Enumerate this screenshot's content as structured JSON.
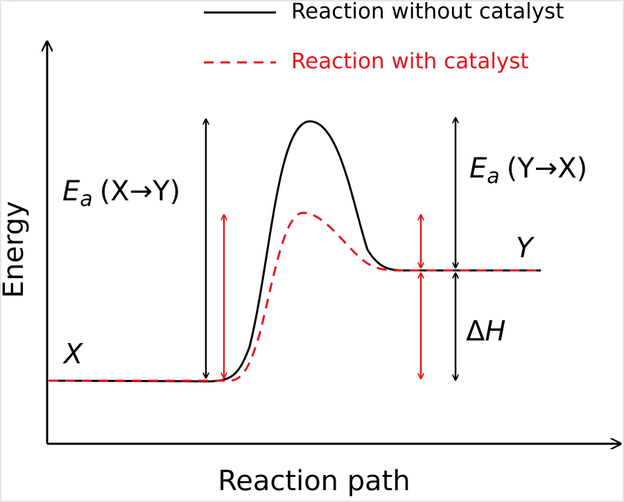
{
  "legend": {
    "entries": [
      {
        "label": "Reaction without catalyst",
        "color": "#000000",
        "style": "solid"
      },
      {
        "label": "Reaction with catalyst",
        "color": "#e8141a",
        "style": "dashed"
      }
    ]
  },
  "axes": {
    "y_label": "Energy",
    "x_label": "Reaction path"
  },
  "states": {
    "reactant": "X",
    "product": "Y"
  },
  "annotations": {
    "ea_forward": {
      "symbol": "E",
      "subscript": "a",
      "text": "(X→Y)"
    },
    "ea_reverse": {
      "symbol": "E",
      "subscript": "a",
      "text": "(Y→X)"
    },
    "enthalpy": {
      "delta": "Δ",
      "symbol": "H"
    }
  }
}
